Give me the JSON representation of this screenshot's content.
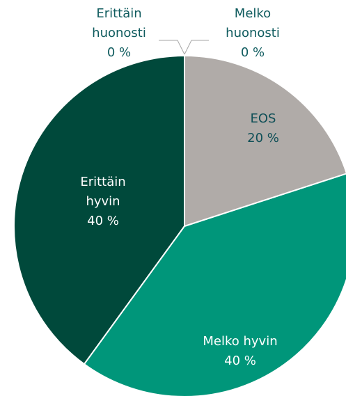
{
  "chart_data": {
    "type": "pie",
    "categories": [
      "Melko huonosti",
      "EOS",
      "Melko hyvin",
      "Erittäin hyvin",
      "Erittäin huonosti"
    ],
    "values": [
      0,
      20,
      40,
      40,
      0
    ],
    "value_labels": [
      "0 %",
      "20 %",
      "40 %",
      "40 %",
      "0 %"
    ],
    "colors": [
      "#7fc4b6",
      "#b0aba8",
      "#00967a",
      "#00493b",
      "#1d6b5c"
    ]
  }
}
